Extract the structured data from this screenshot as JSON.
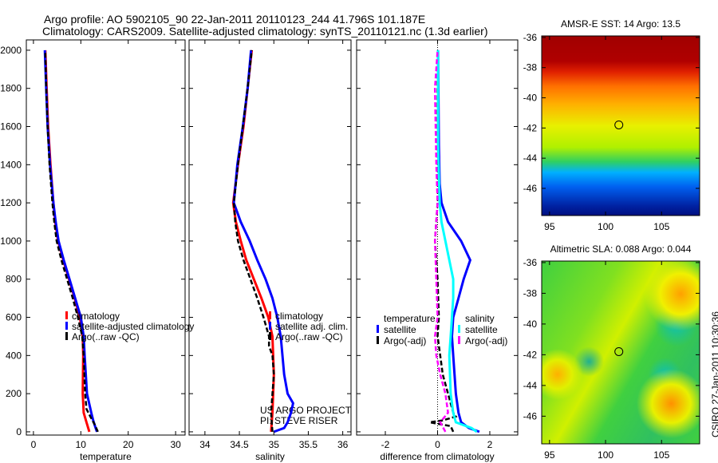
{
  "title": {
    "line1": "Argo profile: AO 5902105_90 22-Jan-2011 20110123_244 41.796S 101.187E",
    "line2": "Climatology: CARS2009. Satellite-adjusted climatology: synTS_20110121.nc (1.3d earlier)"
  },
  "side_label": "CSIRO 27-Jan-2011 10:30:36",
  "credit": {
    "line1": "US ARGO PROJECT",
    "line2": "PI: STEVE RISER"
  },
  "colors": {
    "red": "#ff0000",
    "blue": "#0000ff",
    "black": "#000000",
    "cyan": "#00ffff",
    "magenta": "#ff00ff"
  },
  "chart_data": [
    {
      "type": "line",
      "id": "temp",
      "xlabel": "temperature",
      "ylabel": "",
      "xlim": [
        -1.5,
        32
      ],
      "ylim": [
        2054,
        -17
      ],
      "xticks": [
        0,
        10,
        20,
        30
      ],
      "yticks": [
        0,
        200,
        400,
        600,
        800,
        1000,
        1200,
        1400,
        1600,
        1800,
        2000
      ],
      "show_yticklabels": true,
      "legend": {
        "placement": "lower-left",
        "entries": [
          "climatology",
          "satellite-adjusted climatology",
          "Argo(..raw -QC)"
        ]
      },
      "series": [
        {
          "name": "climatology",
          "color": "red",
          "solid": true,
          "depth": [
            0,
            50,
            100,
            200,
            400,
            500,
            600,
            700,
            800,
            900,
            1000,
            1100,
            1200,
            1400,
            1600,
            1800,
            2000
          ],
          "values": [
            11.8,
            11.2,
            10.6,
            10.4,
            10.5,
            10.4,
            9.8,
            8.7,
            7.5,
            6.3,
            5.2,
            4.6,
            4.2,
            3.6,
            3.1,
            2.8,
            2.5
          ]
        },
        {
          "name": "satellite-adjusted climatology",
          "color": "blue",
          "solid": true,
          "depth": [
            0,
            30,
            60,
            100,
            200,
            400,
            500,
            600,
            700,
            800,
            900,
            1000,
            1100,
            1200,
            1400,
            1600,
            1800,
            2000
          ],
          "values": [
            13.4,
            13.0,
            12.6,
            12.2,
            11.3,
            10.8,
            10.6,
            10.0,
            8.8,
            7.6,
            6.4,
            5.3,
            4.7,
            4.2,
            3.5,
            3.0,
            2.7,
            2.4
          ]
        },
        {
          "name": "Argo(..raw -QC)",
          "color": "black",
          "solid": false,
          "depth": [
            0,
            40,
            80,
            120,
            200,
            400,
            500,
            600,
            700,
            800,
            900,
            1000,
            1100,
            1200,
            1400,
            1600,
            1800,
            1990
          ],
          "values": [
            13.6,
            12.9,
            12.0,
            11.2,
            10.9,
            10.6,
            10.3,
            9.4,
            8.3,
            7.1,
            5.9,
            4.9,
            4.4,
            4.0,
            3.4,
            3.0,
            2.7,
            2.5
          ]
        }
      ]
    },
    {
      "type": "line",
      "id": "sal",
      "xlabel": "salinity",
      "ylabel": "",
      "xlim": [
        33.77,
        36.12
      ],
      "ylim": [
        2054,
        -17
      ],
      "xticks": [
        34,
        34.5,
        35,
        35.5,
        36
      ],
      "yticks": [
        0,
        200,
        400,
        600,
        800,
        1000,
        1200,
        1400,
        1600,
        1800,
        2000
      ],
      "show_yticklabels": false,
      "legend": {
        "placement": "lower-right",
        "entries": [
          "climatology",
          "satellite adj. clim.",
          "Argo(..raw -QC)"
        ]
      },
      "series": [
        {
          "name": "climatology",
          "color": "red",
          "solid": true,
          "depth": [
            0,
            100,
            300,
            500,
            600,
            700,
            800,
            900,
            1000,
            1100,
            1200,
            1400,
            1600,
            1800,
            2000
          ],
          "values": [
            34.96,
            34.98,
            35.0,
            34.98,
            34.92,
            34.82,
            34.71,
            34.6,
            34.52,
            34.45,
            34.41,
            34.48,
            34.56,
            34.62,
            34.68
          ]
        },
        {
          "name": "satellite adj. clim.",
          "color": "blue",
          "solid": true,
          "depth": [
            0,
            20,
            50,
            100,
            150,
            200,
            300,
            500,
            600,
            700,
            800,
            900,
            1000,
            1100,
            1200,
            1400,
            1600,
            1800,
            2000
          ],
          "values": [
            35.0,
            35.15,
            35.2,
            35.25,
            35.28,
            35.2,
            35.15,
            35.1,
            35.05,
            34.98,
            34.88,
            34.76,
            34.65,
            34.52,
            34.42,
            34.47,
            34.55,
            34.62,
            34.67
          ]
        },
        {
          "name": "Argo(..raw -QC)",
          "color": "black",
          "solid": false,
          "depth": [
            0,
            100,
            200,
            300,
            400,
            450,
            500,
            600,
            700,
            800,
            900,
            1000,
            1100,
            1200,
            1300,
            1400,
            1600,
            1800,
            2000
          ],
          "values": [
            34.98,
            34.96,
            34.98,
            35.0,
            34.98,
            34.93,
            34.93,
            34.85,
            34.76,
            34.66,
            34.56,
            34.48,
            34.44,
            34.42,
            34.45,
            34.48,
            34.55,
            34.62,
            34.68
          ]
        }
      ]
    },
    {
      "type": "line",
      "id": "diff",
      "xlabel": "difference from climatology",
      "ylabel": "",
      "xlim": [
        -3.1,
        3.07
      ],
      "ylim": [
        2054,
        -17
      ],
      "xticks": [
        -2,
        0,
        2
      ],
      "yticks": [
        0,
        200,
        400,
        600,
        800,
        1000,
        1200,
        1400,
        1600,
        1800,
        2000
      ],
      "show_yticklabels": false,
      "legend": {
        "placement": "lower-center",
        "groups": [
          {
            "title": "temperature",
            "entries": [
              "satellite",
              "Argo(-adj)"
            ]
          },
          {
            "title": "salinity",
            "entries": [
              "satellite",
              "Argo(-adj)"
            ]
          }
        ]
      },
      "series": [
        {
          "name": "temperature satellite",
          "color": "blue",
          "solid": true,
          "depth": [
            0,
            20,
            50,
            100,
            200,
            400,
            500,
            600,
            700,
            800,
            900,
            1000,
            1100,
            1200,
            1300,
            1500,
            2000
          ],
          "values": [
            1.6,
            1.2,
            0.9,
            0.8,
            0.7,
            0.6,
            0.55,
            0.6,
            0.8,
            1.0,
            1.25,
            0.9,
            0.4,
            0.15,
            0.08,
            0.05,
            0.02
          ]
        },
        {
          "name": "temperature Argo(-adj)",
          "color": "black",
          "solid": false,
          "depth": [
            0,
            30,
            50,
            60,
            80,
            100,
            200,
            300,
            400,
            500,
            600,
            800,
            1000,
            1200,
            1400,
            2000
          ],
          "values": [
            0.6,
            0.5,
            -0.3,
            0.2,
            0.7,
            0.6,
            0.4,
            0.2,
            0.1,
            0.0,
            0.05,
            0.0,
            -0.1,
            0.0,
            0.0,
            0.0
          ]
        },
        {
          "name": "salinity satellite",
          "color": "cyan",
          "solid": true,
          "depth": [
            0,
            20,
            50,
            100,
            200,
            400,
            500,
            600,
            700,
            800,
            900,
            1000,
            1100,
            1200,
            1500,
            2000
          ],
          "values": [
            1.5,
            1.3,
            0.7,
            0.6,
            0.5,
            0.45,
            0.5,
            0.55,
            0.6,
            0.6,
            0.45,
            0.3,
            0.15,
            0.08,
            0.02,
            0.02
          ]
        },
        {
          "name": "salinity Argo(-adj)",
          "color": "magenta",
          "solid": false,
          "depth": [
            0,
            50,
            100,
            200,
            300,
            400,
            500,
            600,
            800,
            1000,
            1200,
            1400,
            1800,
            2000
          ],
          "values": [
            0.3,
            0.1,
            0.4,
            0.3,
            0.1,
            -0.05,
            -0.1,
            0.0,
            -0.05,
            -0.1,
            0.0,
            -0.05,
            -0.1,
            0.0
          ]
        }
      ]
    },
    {
      "type": "heatmap",
      "id": "sst",
      "title": "AMSR-E SST: 14 Argo: 13.5",
      "xlim": [
        94.3,
        108.4
      ],
      "ylim": [
        -35.9,
        -47.8
      ],
      "xticks": [
        95,
        100,
        105
      ],
      "yticks": [
        -36,
        -38,
        -40,
        -42,
        -44,
        -46
      ],
      "marker": [
        101.187,
        -41.796
      ]
    },
    {
      "type": "heatmap",
      "id": "sla",
      "title": "Altimetric SLA: 0.088 Argo: 0.044",
      "xlim": [
        94.3,
        108.4
      ],
      "ylim": [
        -35.9,
        -47.8
      ],
      "xticks": [
        95,
        100,
        105
      ],
      "yticks": [
        -36,
        -38,
        -40,
        -42,
        -44,
        -46
      ],
      "marker": [
        101.187,
        -41.796
      ]
    }
  ]
}
